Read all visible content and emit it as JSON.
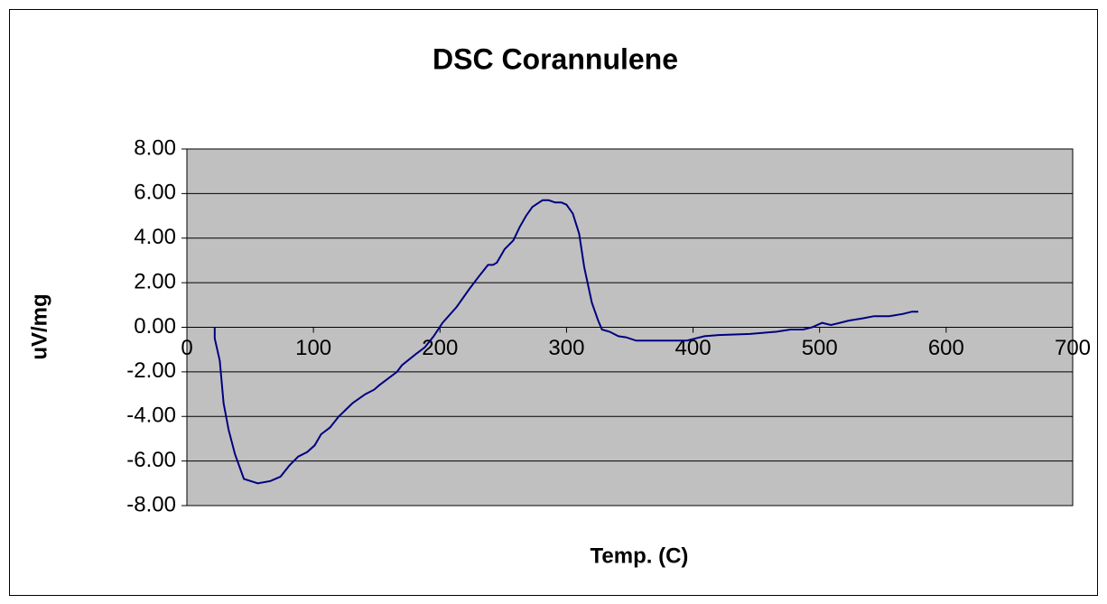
{
  "chart_data": {
    "type": "line",
    "title": "DSC Corannulene",
    "x_label": "Temp. (C)",
    "y_label": "uV/mg",
    "x": [
      22,
      22,
      26,
      29,
      33,
      38,
      45,
      56,
      66,
      74,
      81,
      88,
      95,
      101,
      106,
      113,
      120,
      131,
      141,
      148,
      152,
      159,
      166,
      170,
      181,
      188,
      195,
      202,
      213,
      223,
      231,
      238,
      242,
      245,
      251,
      258,
      263,
      268,
      273,
      281,
      286,
      291,
      296,
      300,
      305,
      310,
      314,
      320,
      325,
      328,
      334,
      341,
      347,
      355,
      366,
      395,
      402,
      409,
      420,
      445,
      466,
      477,
      487,
      494,
      502,
      509,
      516,
      523,
      534,
      543,
      555,
      566,
      573,
      578
    ],
    "series": [
      {
        "name": "uV/mg",
        "color": "#000080",
        "values": [
          0,
          -0.5,
          -1.5,
          -3.4,
          -4.6,
          -5.7,
          -6.8,
          -7.0,
          -6.9,
          -6.7,
          -6.2,
          -5.8,
          -5.6,
          -5.3,
          -4.8,
          -4.5,
          -4.0,
          -3.4,
          -3.0,
          -2.8,
          -2.6,
          -2.3,
          -2.0,
          -1.7,
          -1.2,
          -0.9,
          -0.4,
          0.2,
          0.9,
          1.7,
          2.3,
          2.8,
          2.8,
          2.9,
          3.5,
          3.9,
          4.5,
          5.0,
          5.4,
          5.7,
          5.7,
          5.6,
          5.6,
          5.5,
          5.1,
          4.2,
          2.7,
          1.1,
          0.3,
          -0.1,
          -0.2,
          -0.4,
          -0.45,
          -0.6,
          -0.6,
          -0.6,
          -0.5,
          -0.4,
          -0.35,
          -0.3,
          -0.2,
          -0.1,
          -0.1,
          0.0,
          0.2,
          0.1,
          0.2,
          0.3,
          0.4,
          0.5,
          0.5,
          0.6,
          0.7,
          0.7
        ]
      }
    ],
    "xlim": [
      0,
      700
    ],
    "xticks": [
      0,
      100,
      200,
      300,
      400,
      500,
      600,
      700
    ],
    "ylim": [
      -8,
      8
    ],
    "yticks": [
      {
        "value": -8,
        "label": "-8.00"
      },
      {
        "value": -6,
        "label": "-6.00"
      },
      {
        "value": -4,
        "label": "-4.00"
      },
      {
        "value": -2,
        "label": "-2.00"
      },
      {
        "value": 0,
        "label": "0.00"
      },
      {
        "value": 2,
        "label": "2.00"
      },
      {
        "value": 4,
        "label": "4.00"
      },
      {
        "value": 6,
        "label": "6.00"
      },
      {
        "value": 8,
        "label": "8.00"
      }
    ],
    "grid": true,
    "plot_background": "#c0c0c0"
  }
}
